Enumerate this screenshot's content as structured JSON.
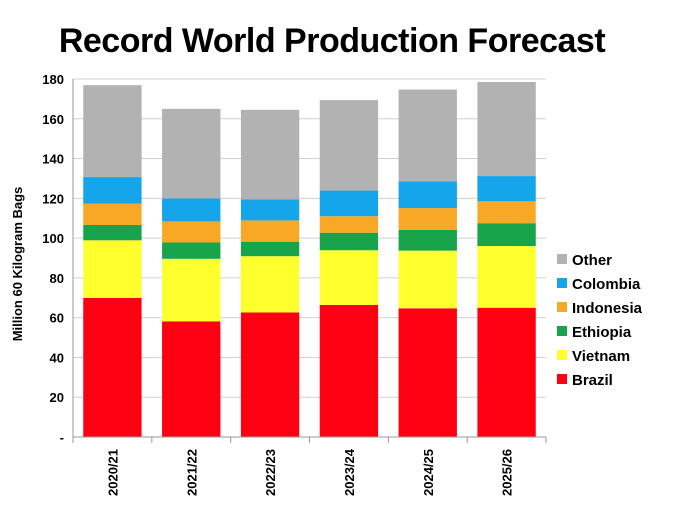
{
  "chart_data": {
    "type": "bar",
    "stacked": true,
    "title": "Record World Production Forecast",
    "ylabel": "Million 60 Kilogram Bags",
    "xlabel": "",
    "ylim": [
      0,
      180
    ],
    "yticks": [
      {
        "value": 0,
        "label": "-"
      },
      {
        "value": 20,
        "label": "20"
      },
      {
        "value": 40,
        "label": "40"
      },
      {
        "value": 60,
        "label": "60"
      },
      {
        "value": 80,
        "label": "80"
      },
      {
        "value": 100,
        "label": "100"
      },
      {
        "value": 120,
        "label": "120"
      },
      {
        "value": 140,
        "label": "140"
      },
      {
        "value": 160,
        "label": "160"
      },
      {
        "value": 180,
        "label": "180"
      }
    ],
    "grid": true,
    "legend_position": "right",
    "categories": [
      "2020/21",
      "2021/22",
      "2022/23",
      "2023/24",
      "2024/25",
      "2025/26"
    ],
    "series": [
      {
        "name": "Brazil",
        "color": "#ff0013",
        "values": [
          69.9,
          58.1,
          62.6,
          66.4,
          64.7,
          65.0
        ]
      },
      {
        "name": "Vietnam",
        "color": "#ffff2d",
        "values": [
          29.0,
          31.5,
          28.3,
          27.5,
          29.0,
          31.0
        ]
      },
      {
        "name": "Ethiopia",
        "color": "#17a44b",
        "values": [
          7.7,
          8.2,
          7.3,
          8.8,
          10.5,
          11.5
        ]
      },
      {
        "name": "Indonesia",
        "color": "#f9a825",
        "values": [
          10.7,
          10.6,
          10.7,
          8.3,
          10.9,
          11.0
        ]
      },
      {
        "name": "Colombia",
        "color": "#14a5eb",
        "values": [
          13.4,
          11.6,
          10.5,
          12.9,
          13.4,
          12.7
        ]
      },
      {
        "name": "Other",
        "color": "#b2b2b2",
        "values": [
          46.2,
          45.0,
          45.1,
          45.5,
          46.2,
          47.3
        ]
      }
    ]
  }
}
